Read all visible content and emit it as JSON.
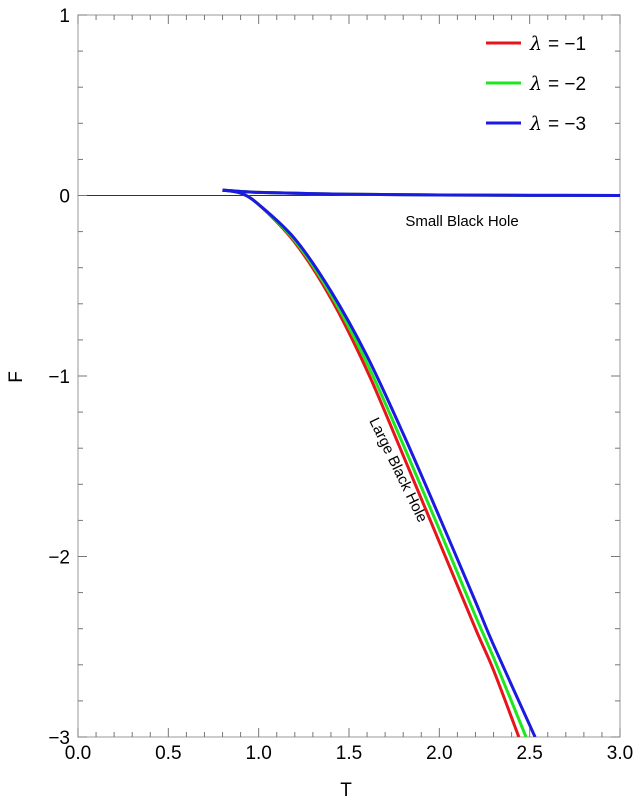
{
  "chart_data": {
    "type": "line",
    "title": "",
    "xlabel": "T",
    "ylabel": "F",
    "xlim": [
      0,
      3
    ],
    "ylim": [
      -3,
      1
    ],
    "x_ticks": [
      "0.0",
      "0.5",
      "1.0",
      "1.5",
      "2.0",
      "2.5",
      "3.0"
    ],
    "y_ticks": [
      "1",
      "0",
      "−1",
      "−2",
      "−3"
    ],
    "grid": false,
    "legend_position": "top-right",
    "legend_symbol": "λ",
    "annotations": [
      "Small Black Hole",
      "Large Black Hole"
    ],
    "series": [
      {
        "name": "λ = −1",
        "legend_value": "= −1",
        "color": "#e8141b",
        "small_branch": [
          [
            0.8,
            0.03
          ],
          [
            1.0,
            0.017
          ],
          [
            1.5,
            0.007
          ],
          [
            2.0,
            0.003
          ],
          [
            2.5,
            0.001
          ],
          [
            3.0,
            0.0
          ]
        ],
        "large_branch": [
          [
            0.8,
            0.03
          ],
          [
            0.9,
            0.013
          ],
          [
            1.0,
            -0.05
          ],
          [
            1.2,
            -0.26
          ],
          [
            1.4,
            -0.57
          ],
          [
            1.6,
            -0.97
          ],
          [
            1.8,
            -1.44
          ],
          [
            2.0,
            -1.92
          ],
          [
            2.2,
            -2.4
          ],
          [
            2.3,
            -2.63
          ],
          [
            2.44,
            -3.0
          ]
        ]
      },
      {
        "name": "λ = −2",
        "legend_value": "= −2",
        "color": "#1ee71e",
        "small_branch": [
          [
            0.8,
            0.03
          ],
          [
            1.0,
            0.017
          ],
          [
            1.5,
            0.007
          ],
          [
            2.0,
            0.003
          ],
          [
            2.5,
            0.001
          ],
          [
            3.0,
            0.0
          ]
        ],
        "large_branch": [
          [
            0.8,
            0.03
          ],
          [
            0.9,
            0.013
          ],
          [
            1.0,
            -0.05
          ],
          [
            1.2,
            -0.25
          ],
          [
            1.4,
            -0.55
          ],
          [
            1.6,
            -0.93
          ],
          [
            1.8,
            -1.38
          ],
          [
            2.0,
            -1.85
          ],
          [
            2.2,
            -2.33
          ],
          [
            2.3,
            -2.56
          ],
          [
            2.48,
            -3.0
          ]
        ]
      },
      {
        "name": "λ = −3",
        "legend_value": "= −3",
        "color": "#1a1ae0",
        "small_branch": [
          [
            0.8,
            0.03
          ],
          [
            1.0,
            0.017
          ],
          [
            1.5,
            0.007
          ],
          [
            2.0,
            0.003
          ],
          [
            2.5,
            0.001
          ],
          [
            3.0,
            0.0
          ]
        ],
        "large_branch": [
          [
            0.8,
            0.03
          ],
          [
            0.9,
            0.013
          ],
          [
            1.0,
            -0.05
          ],
          [
            1.2,
            -0.24
          ],
          [
            1.4,
            -0.53
          ],
          [
            1.6,
            -0.89
          ],
          [
            1.8,
            -1.32
          ],
          [
            2.0,
            -1.78
          ],
          [
            2.2,
            -2.25
          ],
          [
            2.3,
            -2.49
          ],
          [
            2.53,
            -3.0
          ]
        ]
      }
    ]
  }
}
